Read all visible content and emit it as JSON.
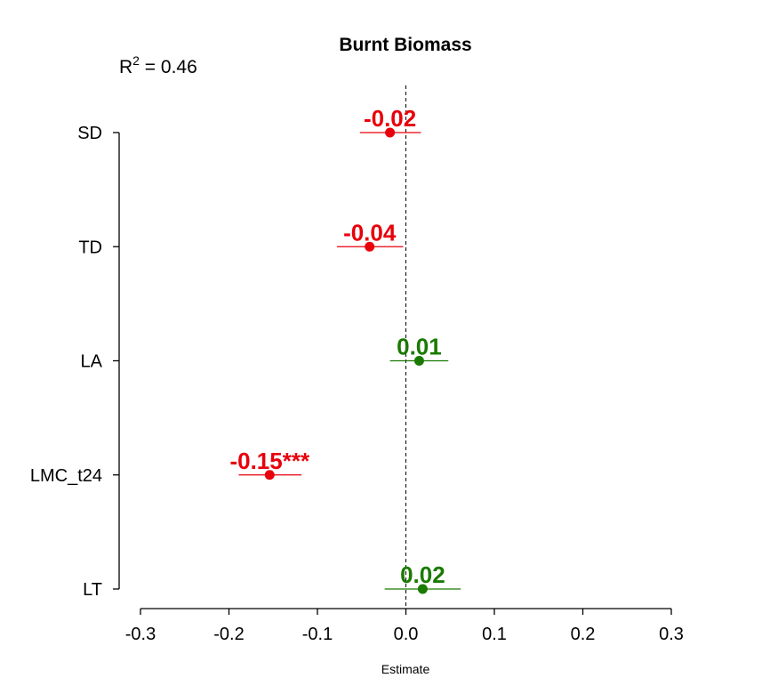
{
  "chart_data": {
    "type": "scatter",
    "title": "Burnt Biomass",
    "annotation": {
      "r2_prefix": "R",
      "r2_exponent": "2",
      "r2_value": " = 0.46"
    },
    "xlabel": "Estimate",
    "ylabel": "",
    "xlim": [
      -0.3,
      0.3
    ],
    "x_ticks": [
      -0.3,
      -0.2,
      -0.1,
      0.0,
      0.1,
      0.2,
      0.3
    ],
    "x_tick_labels": [
      "-0.3",
      "-0.2",
      "-0.1",
      "0.0",
      "0.1",
      "0.2",
      "0.3"
    ],
    "reference_line": 0,
    "grid": false,
    "colors": {
      "negative": "#e8000b",
      "positive": "#1a7a00"
    },
    "categories": [
      "SD",
      "TD",
      "LA",
      "LMC_t24",
      "LT"
    ],
    "estimates": [
      -0.018,
      -0.041,
      0.015,
      -0.154,
      0.019
    ],
    "ci_low": [
      -0.052,
      -0.078,
      -0.018,
      -0.189,
      -0.024
    ],
    "ci_high": [
      0.017,
      -0.003,
      0.048,
      -0.118,
      0.062
    ],
    "labels": [
      "-0.02",
      "-0.04",
      "0.01",
      "-0.15***",
      "0.02"
    ]
  }
}
